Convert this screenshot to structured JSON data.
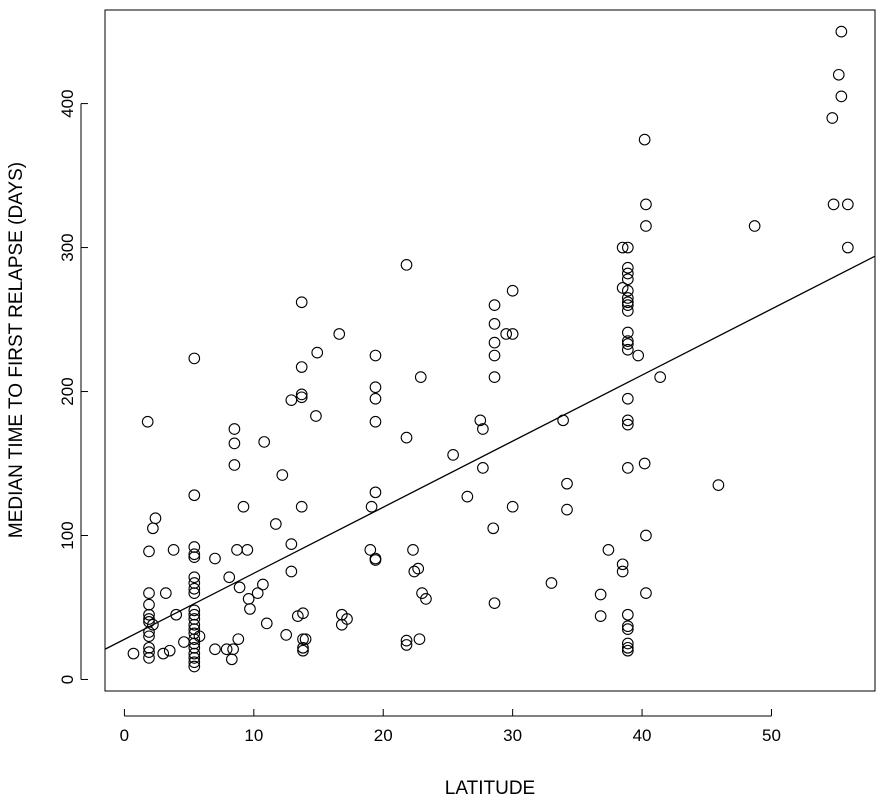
{
  "chart_data": {
    "type": "scatter",
    "title": "",
    "xlabel": "LATITUDE",
    "ylabel": "MEDIAN TIME TO FIRST RELAPSE (DAYS)",
    "xlim": [
      -1.5,
      58
    ],
    "ylim": [
      -8,
      465
    ],
    "xticks": [
      0,
      10,
      20,
      30,
      40,
      50
    ],
    "yticks": [
      0,
      100,
      200,
      300,
      400
    ],
    "grid": false,
    "marker": "open-circle",
    "colors": {
      "points": "#000000",
      "line": "#000000",
      "background": "#ffffff"
    },
    "trend_line": {
      "x": [
        -1.5,
        58
      ],
      "y": [
        21,
        294
      ]
    },
    "points": [
      [
        0.7,
        18
      ],
      [
        1.8,
        179
      ],
      [
        1.9,
        89
      ],
      [
        1.9,
        60
      ],
      [
        1.9,
        52
      ],
      [
        1.9,
        45
      ],
      [
        1.9,
        42
      ],
      [
        1.9,
        40
      ],
      [
        1.9,
        33
      ],
      [
        1.9,
        30
      ],
      [
        1.9,
        22
      ],
      [
        1.9,
        19
      ],
      [
        1.9,
        15
      ],
      [
        2.2,
        105
      ],
      [
        2.4,
        112
      ],
      [
        2.2,
        38
      ],
      [
        3.0,
        18
      ],
      [
        3.2,
        60
      ],
      [
        3.5,
        20
      ],
      [
        3.8,
        90
      ],
      [
        4.0,
        45
      ],
      [
        4.6,
        26
      ],
      [
        5.4,
        223
      ],
      [
        5.4,
        128
      ],
      [
        5.4,
        92
      ],
      [
        5.4,
        87
      ],
      [
        5.4,
        85
      ],
      [
        5.4,
        71
      ],
      [
        5.4,
        67
      ],
      [
        5.4,
        63
      ],
      [
        5.4,
        60
      ],
      [
        5.4,
        48
      ],
      [
        5.4,
        45
      ],
      [
        5.4,
        42
      ],
      [
        5.4,
        38
      ],
      [
        5.4,
        35
      ],
      [
        5.4,
        32
      ],
      [
        5.4,
        28
      ],
      [
        5.4,
        25
      ],
      [
        5.4,
        22
      ],
      [
        5.4,
        18
      ],
      [
        5.4,
        15
      ],
      [
        5.4,
        12
      ],
      [
        5.4,
        9
      ],
      [
        5.8,
        30
      ],
      [
        7.0,
        84
      ],
      [
        7.0,
        21
      ],
      [
        7.9,
        21
      ],
      [
        8.1,
        71
      ],
      [
        8.3,
        14
      ],
      [
        8.4,
        21
      ],
      [
        8.5,
        174
      ],
      [
        8.5,
        164
      ],
      [
        8.5,
        149
      ],
      [
        8.7,
        90
      ],
      [
        8.8,
        28
      ],
      [
        8.9,
        64
      ],
      [
        9.2,
        120
      ],
      [
        9.5,
        90
      ],
      [
        9.6,
        56
      ],
      [
        9.7,
        49
      ],
      [
        10.3,
        60
      ],
      [
        10.7,
        66
      ],
      [
        10.8,
        165
      ],
      [
        11.0,
        39
      ],
      [
        11.7,
        108
      ],
      [
        12.2,
        142
      ],
      [
        12.5,
        31
      ],
      [
        12.9,
        194
      ],
      [
        12.9,
        94
      ],
      [
        12.9,
        75
      ],
      [
        13.4,
        44
      ],
      [
        13.7,
        262
      ],
      [
        13.7,
        217
      ],
      [
        13.7,
        198
      ],
      [
        13.7,
        196
      ],
      [
        13.7,
        120
      ],
      [
        13.8,
        46
      ],
      [
        13.8,
        28
      ],
      [
        13.8,
        22
      ],
      [
        13.8,
        20
      ],
      [
        14.0,
        28
      ],
      [
        14.8,
        183
      ],
      [
        14.9,
        227
      ],
      [
        16.6,
        240
      ],
      [
        16.8,
        45
      ],
      [
        16.8,
        38
      ],
      [
        17.2,
        42
      ],
      [
        19.0,
        90
      ],
      [
        19.1,
        120
      ],
      [
        19.4,
        225
      ],
      [
        19.4,
        203
      ],
      [
        19.4,
        195
      ],
      [
        19.4,
        179
      ],
      [
        19.4,
        130
      ],
      [
        19.4,
        84
      ],
      [
        19.4,
        83
      ],
      [
        21.8,
        288
      ],
      [
        21.8,
        168
      ],
      [
        21.8,
        27
      ],
      [
        21.8,
        24
      ],
      [
        22.3,
        90
      ],
      [
        22.4,
        75
      ],
      [
        22.7,
        77
      ],
      [
        22.8,
        28
      ],
      [
        22.9,
        210
      ],
      [
        23.0,
        60
      ],
      [
        23.3,
        56
      ],
      [
        25.4,
        156
      ],
      [
        26.5,
        127
      ],
      [
        27.5,
        180
      ],
      [
        27.7,
        174
      ],
      [
        27.7,
        147
      ],
      [
        28.5,
        105
      ],
      [
        28.6,
        260
      ],
      [
        28.6,
        247
      ],
      [
        28.6,
        234
      ],
      [
        28.6,
        225
      ],
      [
        28.6,
        210
      ],
      [
        28.6,
        53
      ],
      [
        29.5,
        240
      ],
      [
        30.0,
        270
      ],
      [
        30.0,
        240
      ],
      [
        30.0,
        120
      ],
      [
        33.0,
        67
      ],
      [
        33.9,
        180
      ],
      [
        34.2,
        136
      ],
      [
        34.2,
        118
      ],
      [
        36.8,
        59
      ],
      [
        36.8,
        44
      ],
      [
        37.4,
        90
      ],
      [
        38.5,
        300
      ],
      [
        38.5,
        272
      ],
      [
        38.5,
        80
      ],
      [
        38.5,
        75
      ],
      [
        38.9,
        300
      ],
      [
        38.9,
        286
      ],
      [
        38.9,
        282
      ],
      [
        38.9,
        278
      ],
      [
        38.9,
        270
      ],
      [
        38.9,
        265
      ],
      [
        38.9,
        262
      ],
      [
        38.9,
        260
      ],
      [
        38.9,
        256
      ],
      [
        38.9,
        241
      ],
      [
        38.9,
        235
      ],
      [
        38.9,
        233
      ],
      [
        38.9,
        229
      ],
      [
        38.9,
        195
      ],
      [
        38.9,
        180
      ],
      [
        38.9,
        177
      ],
      [
        38.9,
        147
      ],
      [
        38.9,
        45
      ],
      [
        38.9,
        37
      ],
      [
        38.9,
        35
      ],
      [
        38.9,
        25
      ],
      [
        38.9,
        22
      ],
      [
        38.9,
        20
      ],
      [
        39.7,
        225
      ],
      [
        40.2,
        375
      ],
      [
        40.3,
        330
      ],
      [
        40.3,
        315
      ],
      [
        40.2,
        150
      ],
      [
        40.3,
        100
      ],
      [
        40.3,
        60
      ],
      [
        41.4,
        210
      ],
      [
        45.9,
        135
      ],
      [
        48.7,
        315
      ],
      [
        54.7,
        390
      ],
      [
        54.8,
        330
      ],
      [
        55.2,
        420
      ],
      [
        55.4,
        450
      ],
      [
        55.4,
        405
      ],
      [
        55.9,
        330
      ],
      [
        55.9,
        300
      ]
    ]
  }
}
